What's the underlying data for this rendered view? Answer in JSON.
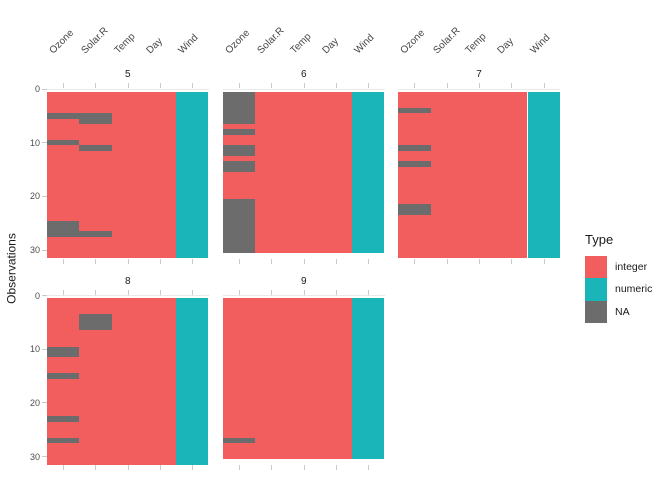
{
  "chart_data": {
    "type": "heatmap",
    "description": "Missing-data matrix (vis_dat style) of a daily air-quality dataset, faceted by month. Each facet shows variable columns vs observation rows; cell color encodes data type, gray encodes NA.",
    "columns": [
      "Ozone",
      "Solar.R",
      "Temp",
      "Day",
      "Wind"
    ],
    "column_types": {
      "Ozone": "integer",
      "Solar.R": "integer",
      "Temp": "integer",
      "Day": "integer",
      "Wind": "numeric"
    },
    "ylabel": "Observations",
    "y_ticks": [
      0,
      10,
      20,
      30
    ],
    "grid": false,
    "legend": {
      "title": "Type",
      "position": "right",
      "entries": [
        {
          "label": "integer",
          "color": "#F25E5E"
        },
        {
          "label": "numeric",
          "color": "#1AB5B9"
        },
        {
          "label": "NA",
          "color": "#6C6C6C"
        }
      ]
    },
    "colors": {
      "tick": "#c9c9c9",
      "gridline": "#e9e9e9",
      "axis_text": "#4d4d4d",
      "strip_text": "#1a1a1a"
    },
    "facets": [
      {
        "label": "5",
        "n_obs": 31,
        "na": {
          "Ozone": [
            [
              5,
              5
            ],
            [
              10,
              10
            ],
            [
              25,
              27
            ]
          ],
          "Solar.R": [
            [
              5,
              6
            ],
            [
              11,
              11
            ],
            [
              27,
              27
            ]
          ]
        }
      },
      {
        "label": "6",
        "n_obs": 30,
        "na": {
          "Ozone": [
            [
              1,
              6
            ],
            [
              8,
              8
            ],
            [
              11,
              12
            ],
            [
              14,
              15
            ],
            [
              21,
              30
            ]
          ]
        }
      },
      {
        "label": "7",
        "n_obs": 31,
        "na": {
          "Ozone": [
            [
              4,
              4
            ],
            [
              11,
              11
            ],
            [
              14,
              14
            ],
            [
              22,
              23
            ]
          ]
        }
      },
      {
        "label": "8",
        "n_obs": 31,
        "na": {
          "Ozone": [
            [
              10,
              11
            ],
            [
              15,
              15
            ],
            [
              23,
              23
            ],
            [
              27,
              27
            ]
          ],
          "Solar.R": [
            [
              4,
              6
            ]
          ]
        }
      },
      {
        "label": "9",
        "n_obs": 30,
        "na": {
          "Ozone": [
            [
              27,
              27
            ]
          ]
        }
      }
    ]
  }
}
